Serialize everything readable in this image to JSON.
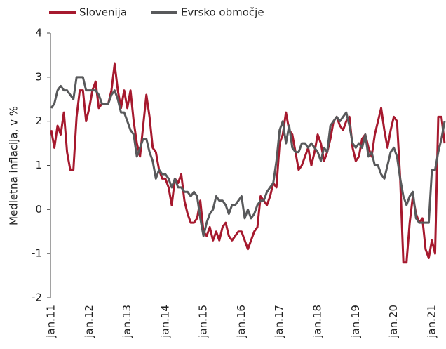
{
  "chart_data": {
    "type": "line",
    "y_label": "Medletna inflacija, v %",
    "categories": [
      "jan.11",
      null,
      null,
      null,
      null,
      null,
      null,
      null,
      null,
      null,
      null,
      null,
      "jan.12",
      null,
      null,
      null,
      null,
      null,
      null,
      null,
      null,
      null,
      null,
      null,
      "jan.13",
      null,
      null,
      null,
      null,
      null,
      null,
      null,
      null,
      null,
      null,
      null,
      "jan.14",
      null,
      null,
      null,
      null,
      null,
      null,
      null,
      null,
      null,
      null,
      null,
      "jan.15",
      null,
      null,
      null,
      null,
      null,
      null,
      null,
      null,
      null,
      null,
      null,
      "jan.16",
      null,
      null,
      null,
      null,
      null,
      null,
      null,
      null,
      null,
      null,
      null,
      "jan.17",
      null,
      null,
      null,
      null,
      null,
      null,
      null,
      null,
      null,
      null,
      null,
      "jan.18",
      null,
      null,
      null,
      null,
      null,
      null,
      null,
      null,
      null,
      null,
      null,
      "jan.19",
      null,
      null,
      null,
      null,
      null,
      null,
      null,
      null,
      null,
      null,
      null,
      "jan.20",
      null,
      null,
      null,
      null,
      null,
      null,
      null,
      null,
      null,
      null,
      null,
      "jan.21",
      null,
      null,
      null,
      null
    ],
    "series": [
      {
        "name": "Slovenija",
        "color": "#a6192e",
        "values": [
          1.8,
          1.4,
          1.9,
          1.7,
          2.2,
          1.3,
          0.9,
          0.9,
          2.1,
          2.7,
          2.7,
          2.0,
          2.3,
          2.7,
          2.9,
          2.3,
          2.4,
          2.4,
          2.4,
          2.7,
          3.3,
          2.7,
          2.3,
          2.7,
          2.3,
          2.7,
          2.0,
          1.5,
          1.2,
          1.9,
          2.6,
          2.1,
          1.4,
          1.3,
          0.9,
          0.7,
          0.7,
          0.5,
          0.1,
          0.7,
          0.6,
          0.8,
          0.2,
          -0.1,
          -0.3,
          -0.3,
          -0.2,
          0.2,
          -0.5,
          -0.6,
          -0.4,
          -0.7,
          -0.5,
          -0.7,
          -0.4,
          -0.3,
          -0.6,
          -0.7,
          -0.6,
          -0.5,
          -0.5,
          -0.7,
          -0.9,
          -0.7,
          -0.5,
          -0.4,
          0.3,
          0.2,
          0.1,
          0.3,
          0.6,
          0.5,
          1.5,
          1.7,
          2.2,
          1.8,
          1.7,
          1.3,
          0.9,
          1.0,
          1.2,
          1.4,
          1.0,
          1.3,
          1.7,
          1.5,
          1.1,
          1.3,
          1.6,
          2.0,
          2.1,
          1.9,
          1.8,
          2.0,
          2.1,
          1.4,
          1.1,
          1.2,
          1.6,
          1.7,
          1.4,
          1.2,
          1.7,
          2.0,
          2.3,
          1.8,
          1.4,
          1.8,
          2.1,
          2.0,
          0.7,
          -1.2,
          -1.2,
          -0.3,
          0.3,
          -0.1,
          -0.3,
          -0.2,
          -0.9,
          -1.1,
          -0.7,
          -1.0,
          2.1,
          2.1,
          1.5
        ]
      },
      {
        "name": "Evrsko območje",
        "color": "#58595b",
        "values": [
          2.3,
          2.4,
          2.7,
          2.8,
          2.7,
          2.7,
          2.6,
          2.5,
          3.0,
          3.0,
          3.0,
          2.7,
          2.7,
          2.7,
          2.7,
          2.6,
          2.4,
          2.4,
          2.4,
          2.6,
          2.7,
          2.5,
          2.2,
          2.2,
          2.0,
          1.8,
          1.7,
          1.2,
          1.4,
          1.6,
          1.6,
          1.3,
          1.1,
          0.7,
          0.9,
          0.8,
          0.8,
          0.7,
          0.5,
          0.7,
          0.5,
          0.5,
          0.4,
          0.4,
          0.3,
          0.4,
          0.3,
          -0.2,
          -0.6,
          -0.3,
          -0.1,
          0.0,
          0.3,
          0.2,
          0.2,
          0.1,
          -0.1,
          0.1,
          0.1,
          0.2,
          0.3,
          -0.2,
          0.0,
          -0.2,
          -0.1,
          0.1,
          0.2,
          0.2,
          0.4,
          0.5,
          0.6,
          1.1,
          1.8,
          2.0,
          1.5,
          1.9,
          1.4,
          1.3,
          1.3,
          1.5,
          1.5,
          1.4,
          1.5,
          1.4,
          1.3,
          1.1,
          1.4,
          1.3,
          1.9,
          2.0,
          2.1,
          2.0,
          2.1,
          2.2,
          1.9,
          1.5,
          1.4,
          1.5,
          1.4,
          1.7,
          1.2,
          1.3,
          1.0,
          1.0,
          0.8,
          0.7,
          1.0,
          1.3,
          1.4,
          1.2,
          0.7,
          0.3,
          0.1,
          0.3,
          0.4,
          -0.2,
          -0.3,
          -0.3,
          -0.3,
          -0.3,
          0.9,
          0.9,
          1.3,
          1.6,
          2.0
        ]
      }
    ],
    "ylim": [
      -2,
      4
    ],
    "yticks": [
      -2,
      -1,
      0,
      1,
      2,
      3,
      4
    ]
  }
}
